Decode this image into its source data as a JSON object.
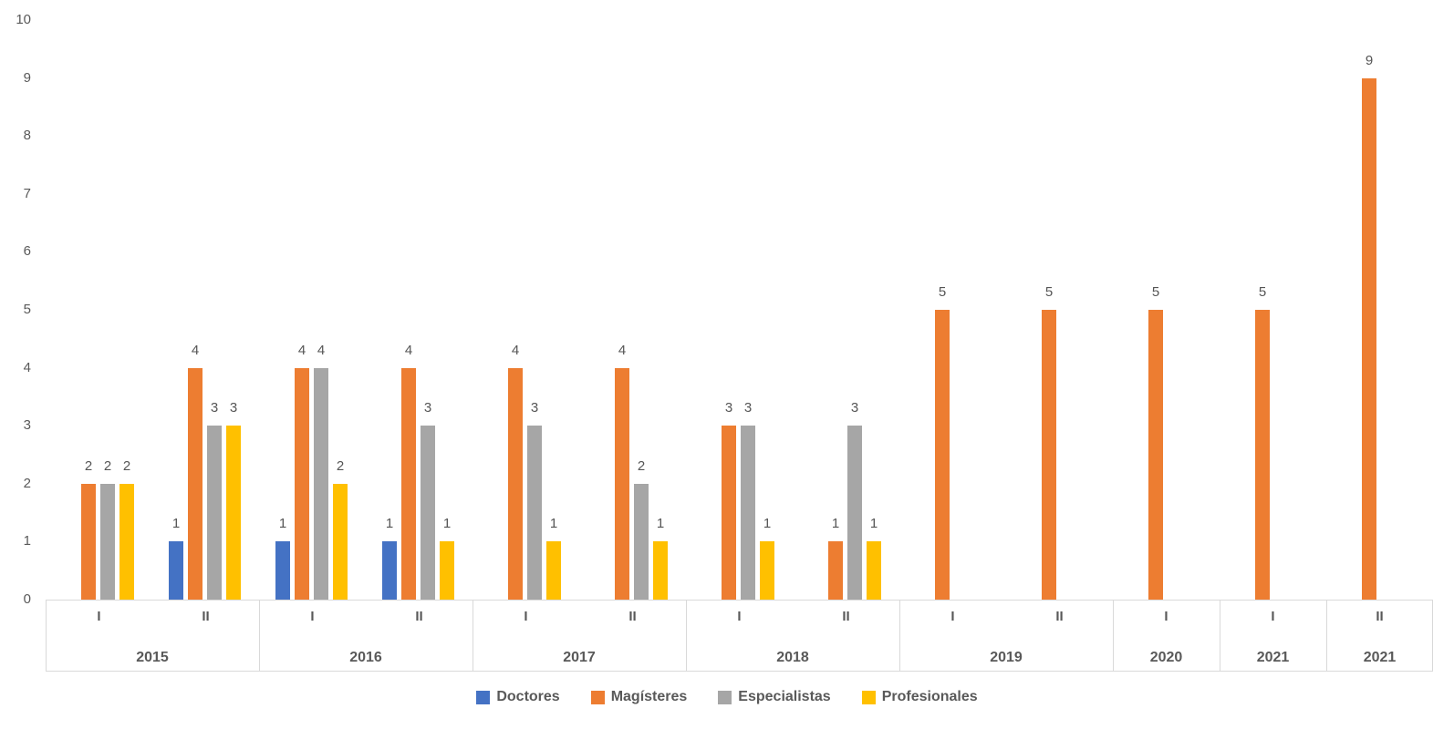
{
  "chart_data": {
    "type": "bar",
    "title": "",
    "xlabel": "",
    "ylabel": "",
    "ylim": [
      0,
      10
    ],
    "y_ticks": [
      0,
      1,
      2,
      3,
      4,
      5,
      6,
      7,
      8,
      9,
      10
    ],
    "grid": false,
    "data_labels": true,
    "legend_position": "bottom",
    "categories": [
      {
        "period": "I",
        "year": "2015"
      },
      {
        "period": "II",
        "year": "2015"
      },
      {
        "period": "I",
        "year": "2016"
      },
      {
        "period": "II",
        "year": "2016"
      },
      {
        "period": "I",
        "year": "2017"
      },
      {
        "period": "II",
        "year": "2017"
      },
      {
        "period": "I",
        "year": "2018"
      },
      {
        "period": "II",
        "year": "2018"
      },
      {
        "period": "I",
        "year": "2019"
      },
      {
        "period": "II",
        "year": "2019"
      },
      {
        "period": "I",
        "year": "2020"
      },
      {
        "period": "I",
        "year": "2021"
      },
      {
        "period": "II",
        "year": "2021"
      }
    ],
    "year_groups": [
      {
        "label": "2015",
        "slots": 2
      },
      {
        "label": "2016",
        "slots": 2
      },
      {
        "label": "2017",
        "slots": 2
      },
      {
        "label": "2018",
        "slots": 2
      },
      {
        "label": "2019",
        "slots": 2
      },
      {
        "label": "2020",
        "slots": 1
      },
      {
        "label": "2021",
        "slots": 1
      },
      {
        "label": "2021",
        "slots": 1
      }
    ],
    "series": [
      {
        "name": "Doctores",
        "color": "#4472C4",
        "values": [
          null,
          1,
          1,
          1,
          null,
          null,
          null,
          null,
          null,
          null,
          null,
          null,
          null
        ]
      },
      {
        "name": "Magísteres",
        "color": "#ED7D31",
        "values": [
          2,
          4,
          4,
          4,
          4,
          4,
          3,
          1,
          5,
          5,
          5,
          5,
          9
        ]
      },
      {
        "name": "Especialistas",
        "color": "#A6A6A6",
        "values": [
          2,
          3,
          4,
          3,
          3,
          2,
          3,
          3,
          null,
          null,
          null,
          null,
          null
        ]
      },
      {
        "name": "Profesionales",
        "color": "#FFC000",
        "values": [
          2,
          3,
          2,
          1,
          1,
          1,
          1,
          1,
          null,
          null,
          null,
          null,
          null
        ]
      }
    ],
    "colors": {
      "axis_line": "#d9d9d9",
      "axis_text": "#595959",
      "value_label_text": "#555555",
      "background": "#ffffff"
    }
  }
}
